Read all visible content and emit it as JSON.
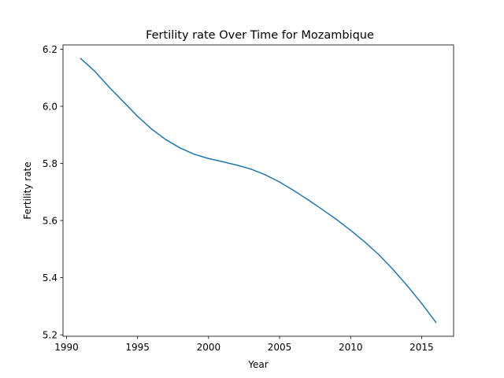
{
  "chart_data": {
    "type": "line",
    "title": "Fertility rate Over Time for Mozambique",
    "xlabel": "Year",
    "ylabel": "Fertility rate",
    "xlim": [
      1989.75,
      2017.25
    ],
    "ylim": [
      5.195,
      6.215
    ],
    "xticks": [
      1990,
      1995,
      2000,
      2005,
      2010,
      2015
    ],
    "yticks": [
      5.2,
      5.4,
      5.6,
      5.8,
      6.0,
      6.2
    ],
    "ytick_labels": [
      "5.2",
      "5.4",
      "5.6",
      "5.8",
      "6.0",
      "6.2"
    ],
    "grid": false,
    "series": [
      {
        "color": "#1f77b4",
        "x": [
          1991,
          1992,
          1993,
          1994,
          1995,
          1996,
          1997,
          1998,
          1999,
          2000,
          2001,
          2002,
          2003,
          2004,
          2005,
          2006,
          2007,
          2008,
          2009,
          2010,
          2011,
          2012,
          2013,
          2014,
          2015,
          2016
        ],
        "y": [
          6.167,
          6.122,
          6.067,
          6.016,
          5.965,
          5.92,
          5.883,
          5.854,
          5.832,
          5.817,
          5.806,
          5.794,
          5.78,
          5.76,
          5.735,
          5.705,
          5.673,
          5.639,
          5.604,
          5.566,
          5.525,
          5.48,
          5.428,
          5.371,
          5.31,
          5.244
        ]
      }
    ]
  }
}
